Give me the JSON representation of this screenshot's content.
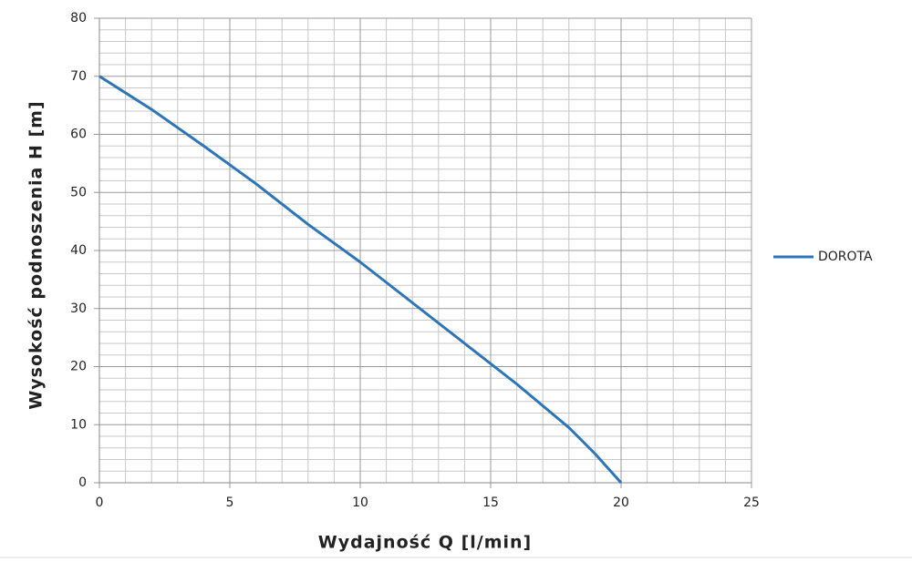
{
  "chart_data": {
    "type": "line",
    "x_label": "Wydajność Q [l/min]",
    "y_label": "Wysokość podnoszenia H [m]",
    "x": [
      0,
      2,
      4,
      6,
      8,
      10,
      12,
      14,
      16,
      18,
      19,
      20
    ],
    "series": [
      {
        "name": "DOROTA",
        "color": "#2e75b6",
        "values": [
          70,
          64.3,
          58,
          51.5,
          44.5,
          38,
          31,
          24,
          17,
          9.5,
          5,
          0
        ]
      }
    ],
    "xlim": [
      0,
      25
    ],
    "xticks": [
      0,
      5,
      10,
      15,
      20,
      25
    ],
    "ylim": [
      0,
      80
    ],
    "yticks": [
      0,
      10,
      20,
      30,
      40,
      50,
      60,
      70,
      80
    ],
    "grid": true,
    "legend": "right"
  }
}
